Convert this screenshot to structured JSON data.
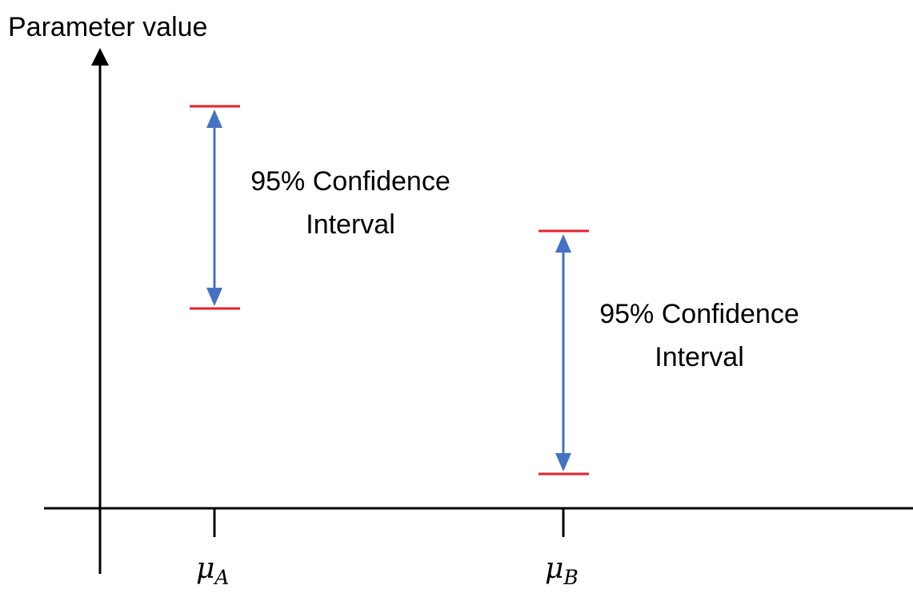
{
  "diagram": {
    "y_axis_label": "Parameter value",
    "categories": [
      {
        "symbol": "μ",
        "subscript": "A",
        "interval_label_line1": "95% Confidence",
        "interval_label_line2": "Interval"
      },
      {
        "symbol": "μ",
        "subscript": "B",
        "interval_label_line1": "95% Confidence",
        "interval_label_line2": "Interval"
      }
    ],
    "colors": {
      "axis": "#000000",
      "interval_bound": "#e8202a",
      "interval_arrow": "#4472c4",
      "text": "#000000"
    }
  }
}
